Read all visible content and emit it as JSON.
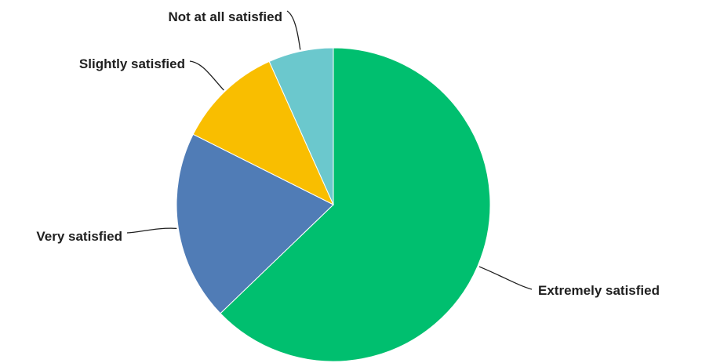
{
  "chart_data": {
    "type": "pie",
    "start_angle_deg": 0,
    "direction": "clockwise",
    "slices": [
      {
        "label": "Extremely satisfied",
        "value": 62.8,
        "color": "#00BF6F"
      },
      {
        "label": "Very satisfied",
        "value": 19.6,
        "color": "#507CB6"
      },
      {
        "label": "Slightly satisfied",
        "value": 10.9,
        "color": "#F9BE00"
      },
      {
        "label": "Not at all satisfied",
        "value": 6.7,
        "color": "#6BC8CD"
      }
    ]
  }
}
